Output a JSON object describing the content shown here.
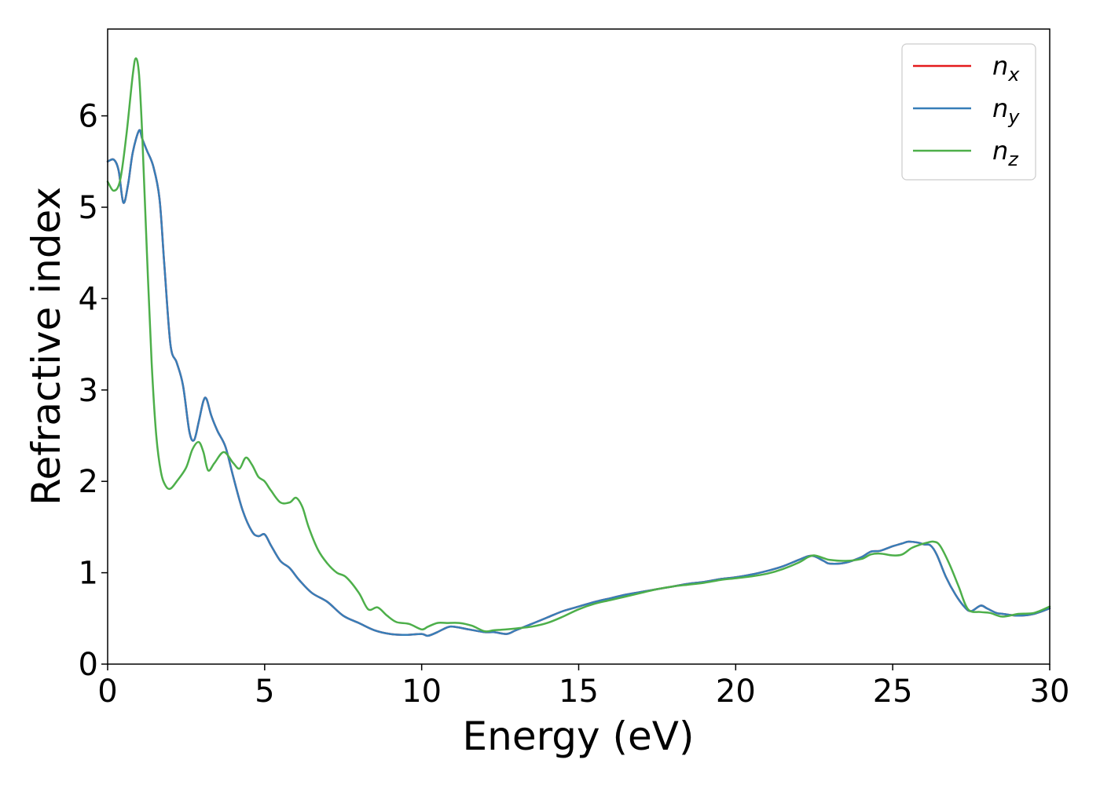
{
  "chart_data": {
    "type": "line",
    "title": "",
    "xlabel": "Energy (eV)",
    "ylabel": "Refractive index",
    "xlim": [
      0,
      30
    ],
    "ylim": [
      0,
      6.95
    ],
    "xticks": [
      0,
      5,
      10,
      15,
      20,
      25,
      30
    ],
    "yticks": [
      0,
      1,
      2,
      3,
      4,
      5,
      6
    ],
    "grid": false,
    "legend": {
      "placement": "top-right"
    },
    "series": [
      {
        "name": "n_x",
        "label_base": "n",
        "label_sub": "x",
        "color": "#e41a1c",
        "x": [
          0,
          0.2,
          0.35,
          0.5,
          0.65,
          0.8,
          1.0,
          1.1,
          1.25,
          1.45,
          1.65,
          1.8,
          2.0,
          2.2,
          2.4,
          2.6,
          2.75,
          2.9,
          3.05,
          3.15,
          3.3,
          3.5,
          3.75,
          4.0,
          4.3,
          4.6,
          4.8,
          5.0,
          5.2,
          5.5,
          5.8,
          6.1,
          6.5,
          7.0,
          7.5,
          8.0,
          8.5,
          9.0,
          9.5,
          10.0,
          10.2,
          10.5,
          10.8,
          11.0,
          11.5,
          12.0,
          12.3,
          12.7,
          13.0,
          13.5,
          14.0,
          14.5,
          15.0,
          15.5,
          16.0,
          16.5,
          17.0,
          17.5,
          18.0,
          18.5,
          19.0,
          19.5,
          20.0,
          20.5,
          21.0,
          21.5,
          22.0,
          22.3,
          22.5,
          22.8,
          23.0,
          23.5,
          24.0,
          24.3,
          24.6,
          25.0,
          25.3,
          25.5,
          25.8,
          26.0,
          26.2,
          26.4,
          26.7,
          27.0,
          27.3,
          27.5,
          27.8,
          28.0,
          28.3,
          28.5,
          29.0,
          29.5,
          30.0
        ],
        "y": [
          5.5,
          5.52,
          5.4,
          5.05,
          5.25,
          5.6,
          5.84,
          5.75,
          5.62,
          5.45,
          5.1,
          4.4,
          3.5,
          3.3,
          3.05,
          2.55,
          2.45,
          2.65,
          2.88,
          2.9,
          2.72,
          2.55,
          2.38,
          2.05,
          1.68,
          1.45,
          1.4,
          1.42,
          1.3,
          1.13,
          1.05,
          0.92,
          0.78,
          0.68,
          0.53,
          0.45,
          0.37,
          0.33,
          0.32,
          0.33,
          0.31,
          0.35,
          0.4,
          0.41,
          0.38,
          0.35,
          0.35,
          0.33,
          0.37,
          0.44,
          0.51,
          0.58,
          0.63,
          0.68,
          0.72,
          0.76,
          0.79,
          0.82,
          0.85,
          0.88,
          0.9,
          0.93,
          0.95,
          0.98,
          1.02,
          1.07,
          1.14,
          1.18,
          1.18,
          1.13,
          1.1,
          1.11,
          1.17,
          1.23,
          1.24,
          1.29,
          1.32,
          1.34,
          1.33,
          1.31,
          1.3,
          1.2,
          0.95,
          0.76,
          0.62,
          0.58,
          0.64,
          0.61,
          0.56,
          0.55,
          0.53,
          0.55,
          0.61
        ]
      },
      {
        "name": "n_y",
        "label_base": "n",
        "label_sub": "y",
        "color": "#377eb8",
        "x": [
          0,
          0.2,
          0.35,
          0.5,
          0.65,
          0.8,
          1.0,
          1.1,
          1.25,
          1.45,
          1.65,
          1.8,
          2.0,
          2.2,
          2.4,
          2.6,
          2.75,
          2.9,
          3.05,
          3.15,
          3.3,
          3.5,
          3.75,
          4.0,
          4.3,
          4.6,
          4.8,
          5.0,
          5.2,
          5.5,
          5.8,
          6.1,
          6.5,
          7.0,
          7.5,
          8.0,
          8.5,
          9.0,
          9.5,
          10.0,
          10.2,
          10.5,
          10.8,
          11.0,
          11.5,
          12.0,
          12.3,
          12.7,
          13.0,
          13.5,
          14.0,
          14.5,
          15.0,
          15.5,
          16.0,
          16.5,
          17.0,
          17.5,
          18.0,
          18.5,
          19.0,
          19.5,
          20.0,
          20.5,
          21.0,
          21.5,
          22.0,
          22.3,
          22.5,
          22.8,
          23.0,
          23.5,
          24.0,
          24.3,
          24.6,
          25.0,
          25.3,
          25.5,
          25.8,
          26.0,
          26.2,
          26.4,
          26.7,
          27.0,
          27.3,
          27.5,
          27.8,
          28.0,
          28.3,
          28.5,
          29.0,
          29.5,
          30.0
        ],
        "y": [
          5.5,
          5.52,
          5.4,
          5.05,
          5.25,
          5.6,
          5.84,
          5.75,
          5.62,
          5.45,
          5.1,
          4.4,
          3.5,
          3.3,
          3.05,
          2.55,
          2.45,
          2.65,
          2.88,
          2.9,
          2.72,
          2.55,
          2.38,
          2.05,
          1.68,
          1.45,
          1.4,
          1.42,
          1.3,
          1.13,
          1.05,
          0.92,
          0.78,
          0.68,
          0.53,
          0.45,
          0.37,
          0.33,
          0.32,
          0.33,
          0.31,
          0.35,
          0.4,
          0.41,
          0.38,
          0.35,
          0.35,
          0.33,
          0.37,
          0.44,
          0.51,
          0.58,
          0.63,
          0.68,
          0.72,
          0.76,
          0.79,
          0.82,
          0.85,
          0.88,
          0.9,
          0.93,
          0.95,
          0.98,
          1.02,
          1.07,
          1.14,
          1.18,
          1.18,
          1.13,
          1.1,
          1.11,
          1.17,
          1.23,
          1.24,
          1.29,
          1.32,
          1.34,
          1.33,
          1.31,
          1.3,
          1.2,
          0.95,
          0.76,
          0.62,
          0.58,
          0.64,
          0.61,
          0.56,
          0.55,
          0.53,
          0.55,
          0.61
        ]
      },
      {
        "name": "n_z",
        "label_base": "n",
        "label_sub": "z",
        "color": "#4daf4a",
        "x": [
          0,
          0.2,
          0.4,
          0.6,
          0.8,
          0.9,
          1.0,
          1.1,
          1.25,
          1.4,
          1.55,
          1.7,
          1.85,
          2.0,
          2.2,
          2.5,
          2.7,
          2.9,
          3.05,
          3.2,
          3.4,
          3.7,
          4.0,
          4.2,
          4.4,
          4.6,
          4.8,
          5.0,
          5.2,
          5.5,
          5.8,
          6.0,
          6.2,
          6.4,
          6.7,
          7.0,
          7.3,
          7.6,
          8.0,
          8.3,
          8.6,
          8.9,
          9.2,
          9.6,
          10.0,
          10.2,
          10.5,
          10.8,
          11.2,
          11.6,
          12.0,
          12.3,
          12.7,
          13.0,
          13.5,
          14.0,
          14.5,
          15.0,
          15.5,
          16.0,
          16.5,
          17.0,
          17.5,
          18.0,
          18.5,
          19.0,
          19.5,
          20.0,
          20.5,
          21.0,
          21.5,
          22.0,
          22.3,
          22.5,
          22.8,
          23.0,
          23.5,
          24.0,
          24.3,
          24.6,
          25.0,
          25.3,
          25.6,
          25.9,
          26.1,
          26.3,
          26.5,
          26.8,
          27.1,
          27.4,
          27.8,
          28.1,
          28.5,
          29.0,
          29.5,
          30.0
        ],
        "y": [
          5.28,
          5.18,
          5.3,
          5.8,
          6.45,
          6.63,
          6.45,
          5.8,
          4.5,
          3.3,
          2.5,
          2.1,
          1.95,
          1.92,
          2.0,
          2.15,
          2.35,
          2.43,
          2.32,
          2.12,
          2.2,
          2.32,
          2.2,
          2.14,
          2.26,
          2.18,
          2.05,
          2.0,
          1.9,
          1.77,
          1.77,
          1.82,
          1.72,
          1.5,
          1.25,
          1.1,
          1.0,
          0.95,
          0.78,
          0.6,
          0.62,
          0.53,
          0.46,
          0.44,
          0.38,
          0.41,
          0.45,
          0.45,
          0.45,
          0.42,
          0.36,
          0.37,
          0.38,
          0.39,
          0.41,
          0.45,
          0.52,
          0.6,
          0.66,
          0.7,
          0.74,
          0.78,
          0.82,
          0.85,
          0.87,
          0.89,
          0.92,
          0.94,
          0.96,
          0.99,
          1.04,
          1.11,
          1.17,
          1.19,
          1.16,
          1.14,
          1.13,
          1.15,
          1.2,
          1.21,
          1.19,
          1.2,
          1.27,
          1.31,
          1.33,
          1.34,
          1.3,
          1.1,
          0.85,
          0.6,
          0.57,
          0.56,
          0.52,
          0.55,
          0.56,
          0.63
        ]
      }
    ]
  }
}
